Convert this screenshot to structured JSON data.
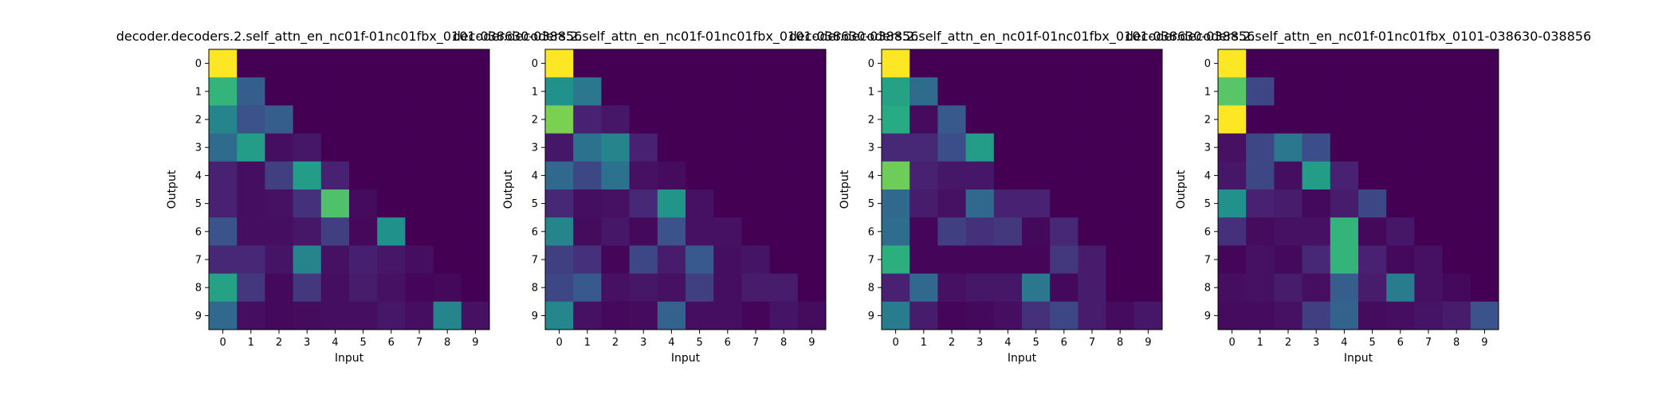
{
  "chart_data": [
    {
      "type": "heatmap",
      "title": "decoder.decoders.2.self_attn_en_nc01f-01nc01fbx_0101-038630-038856",
      "xlabel": "Input",
      "ylabel": "Output",
      "x_ticks": [
        "0",
        "1",
        "2",
        "3",
        "4",
        "5",
        "6",
        "7",
        "8",
        "9"
      ],
      "y_ticks": [
        "0",
        "1",
        "2",
        "3",
        "4",
        "5",
        "6",
        "7",
        "8",
        "9"
      ],
      "colormap": "viridis",
      "values": [
        [
          1.0,
          0.0,
          0.0,
          0.0,
          0.0,
          0.0,
          0.0,
          0.0,
          0.0,
          0.0
        ],
        [
          0.66,
          0.3,
          0.0,
          0.0,
          0.0,
          0.0,
          0.0,
          0.0,
          0.0,
          0.0
        ],
        [
          0.45,
          0.25,
          0.3,
          0.0,
          0.0,
          0.0,
          0.0,
          0.0,
          0.0,
          0.0
        ],
        [
          0.35,
          0.55,
          0.05,
          0.08,
          0.0,
          0.0,
          0.0,
          0.0,
          0.0,
          0.0
        ],
        [
          0.12,
          0.05,
          0.2,
          0.55,
          0.12,
          0.0,
          0.0,
          0.0,
          0.0,
          0.0
        ],
        [
          0.12,
          0.05,
          0.06,
          0.16,
          0.72,
          0.04,
          0.0,
          0.0,
          0.0,
          0.0
        ],
        [
          0.26,
          0.05,
          0.05,
          0.08,
          0.2,
          0.03,
          0.5,
          0.0,
          0.0,
          0.0
        ],
        [
          0.14,
          0.14,
          0.07,
          0.45,
          0.06,
          0.11,
          0.08,
          0.05,
          0.0,
          0.0
        ],
        [
          0.58,
          0.18,
          0.03,
          0.18,
          0.05,
          0.1,
          0.06,
          0.02,
          0.03,
          0.0
        ],
        [
          0.34,
          0.05,
          0.03,
          0.04,
          0.05,
          0.05,
          0.08,
          0.05,
          0.45,
          0.06
        ]
      ]
    },
    {
      "type": "heatmap",
      "title": "decoder.decoders.2.self_attn_en_nc01f-01nc01fbx_0101-038630-038856",
      "xlabel": "Input",
      "ylabel": "Output",
      "x_ticks": [
        "0",
        "1",
        "2",
        "3",
        "4",
        "5",
        "6",
        "7",
        "8",
        "9"
      ],
      "y_ticks": [
        "0",
        "1",
        "2",
        "3",
        "4",
        "5",
        "6",
        "7",
        "8",
        "9"
      ],
      "colormap": "viridis",
      "values": [
        [
          1.0,
          0.0,
          0.0,
          0.0,
          0.0,
          0.0,
          0.0,
          0.0,
          0.0,
          0.0
        ],
        [
          0.5,
          0.4,
          0.0,
          0.0,
          0.0,
          0.0,
          0.0,
          0.0,
          0.0,
          0.0
        ],
        [
          0.8,
          0.12,
          0.08,
          0.0,
          0.0,
          0.0,
          0.0,
          0.0,
          0.0,
          0.0
        ],
        [
          0.08,
          0.38,
          0.45,
          0.12,
          0.0,
          0.0,
          0.0,
          0.0,
          0.0,
          0.0
        ],
        [
          0.34,
          0.22,
          0.38,
          0.06,
          0.04,
          0.0,
          0.0,
          0.0,
          0.0,
          0.0
        ],
        [
          0.14,
          0.05,
          0.06,
          0.14,
          0.52,
          0.06,
          0.0,
          0.0,
          0.0,
          0.0
        ],
        [
          0.45,
          0.04,
          0.08,
          0.03,
          0.25,
          0.06,
          0.06,
          0.0,
          0.0,
          0.0
        ],
        [
          0.2,
          0.16,
          0.02,
          0.22,
          0.1,
          0.28,
          0.05,
          0.07,
          0.0,
          0.0
        ],
        [
          0.22,
          0.28,
          0.06,
          0.08,
          0.06,
          0.2,
          0.05,
          0.1,
          0.1,
          0.0
        ],
        [
          0.46,
          0.06,
          0.03,
          0.04,
          0.32,
          0.05,
          0.05,
          0.02,
          0.07,
          0.04
        ]
      ]
    },
    {
      "type": "heatmap",
      "title": "decoder.decoders.2.self_attn_en_nc01f-01nc01fbx_0101-038630-038856",
      "xlabel": "Input",
      "ylabel": "Output",
      "x_ticks": [
        "0",
        "1",
        "2",
        "3",
        "4",
        "5",
        "6",
        "7",
        "8",
        "9"
      ],
      "y_ticks": [
        "0",
        "1",
        "2",
        "3",
        "4",
        "5",
        "6",
        "7",
        "8",
        "9"
      ],
      "colormap": "viridis",
      "values": [
        [
          1.0,
          0.0,
          0.0,
          0.0,
          0.0,
          0.0,
          0.0,
          0.0,
          0.0,
          0.0
        ],
        [
          0.58,
          0.35,
          0.0,
          0.0,
          0.0,
          0.0,
          0.0,
          0.0,
          0.0,
          0.0
        ],
        [
          0.62,
          0.04,
          0.28,
          0.0,
          0.0,
          0.0,
          0.0,
          0.0,
          0.0,
          0.0
        ],
        [
          0.14,
          0.14,
          0.24,
          0.55,
          0.0,
          0.0,
          0.0,
          0.0,
          0.0,
          0.0
        ],
        [
          0.78,
          0.12,
          0.08,
          0.08,
          0.0,
          0.0,
          0.0,
          0.0,
          0.0,
          0.0
        ],
        [
          0.34,
          0.1,
          0.06,
          0.34,
          0.12,
          0.12,
          0.0,
          0.0,
          0.0,
          0.0
        ],
        [
          0.36,
          0.02,
          0.2,
          0.16,
          0.18,
          0.03,
          0.14,
          0.0,
          0.0,
          0.0
        ],
        [
          0.64,
          0.02,
          0.02,
          0.02,
          0.02,
          0.02,
          0.18,
          0.1,
          0.0,
          0.0
        ],
        [
          0.12,
          0.34,
          0.06,
          0.08,
          0.08,
          0.4,
          0.03,
          0.1,
          0.0,
          0.0
        ],
        [
          0.42,
          0.1,
          0.02,
          0.03,
          0.05,
          0.16,
          0.22,
          0.1,
          0.04,
          0.08
        ]
      ]
    },
    {
      "type": "heatmap",
      "title": "decoder.decoders.2.self_attn_en_nc01f-01nc01fbx_0101-038630-038856",
      "xlabel": "Input",
      "ylabel": "Output",
      "x_ticks": [
        "0",
        "1",
        "2",
        "3",
        "4",
        "5",
        "6",
        "7",
        "8",
        "9"
      ],
      "y_ticks": [
        "0",
        "1",
        "2",
        "3",
        "4",
        "5",
        "6",
        "7",
        "8",
        "9"
      ],
      "colormap": "viridis",
      "values": [
        [
          1.0,
          0.0,
          0.0,
          0.0,
          0.0,
          0.0,
          0.0,
          0.0,
          0.0,
          0.0
        ],
        [
          0.74,
          0.22,
          0.0,
          0.0,
          0.0,
          0.0,
          0.0,
          0.0,
          0.0,
          0.0
        ],
        [
          1.0,
          0.0,
          0.0,
          0.0,
          0.0,
          0.0,
          0.0,
          0.0,
          0.0,
          0.0
        ],
        [
          0.06,
          0.22,
          0.4,
          0.24,
          0.0,
          0.0,
          0.0,
          0.0,
          0.0,
          0.0
        ],
        [
          0.08,
          0.22,
          0.05,
          0.55,
          0.12,
          0.0,
          0.0,
          0.0,
          0.0,
          0.0
        ],
        [
          0.5,
          0.12,
          0.1,
          0.03,
          0.1,
          0.22,
          0.0,
          0.0,
          0.0,
          0.0
        ],
        [
          0.16,
          0.04,
          0.06,
          0.06,
          0.66,
          0.03,
          0.08,
          0.0,
          0.0,
          0.0
        ],
        [
          0.02,
          0.06,
          0.03,
          0.14,
          0.66,
          0.12,
          0.03,
          0.06,
          0.0,
          0.0
        ],
        [
          0.05,
          0.06,
          0.1,
          0.05,
          0.3,
          0.1,
          0.42,
          0.06,
          0.03,
          0.0
        ],
        [
          0.04,
          0.04,
          0.06,
          0.2,
          0.32,
          0.04,
          0.05,
          0.07,
          0.1,
          0.25
        ]
      ]
    }
  ]
}
